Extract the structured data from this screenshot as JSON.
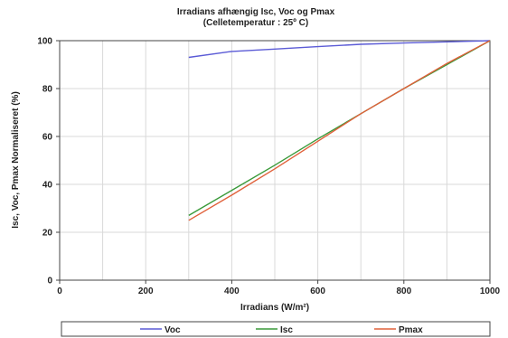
{
  "chart_data": {
    "type": "line",
    "title": "Irradians afhængig Isc, Voc og Pmax",
    "subtitle": "(Celletemperatur : 25º C)",
    "xlabel": "Irradians (W/m²)",
    "ylabel": "Isc, Voc, Pmax Normaliseret (%)",
    "xlim": [
      0,
      1000
    ],
    "ylim": [
      0,
      100
    ],
    "xticks": [
      0,
      200,
      400,
      600,
      800,
      1000
    ],
    "yticks": [
      0,
      20,
      40,
      60,
      80,
      100
    ],
    "grid": true,
    "legend_position": "bottom",
    "series": [
      {
        "name": "Voc",
        "color": "#5b5bd6",
        "x": [
          300,
          400,
          500,
          600,
          700,
          800,
          900,
          1000
        ],
        "y": [
          93,
          95.5,
          96.5,
          97.5,
          98.5,
          99,
          99.5,
          100
        ]
      },
      {
        "name": "Isc",
        "color": "#3a9a3a",
        "x": [
          300,
          400,
          500,
          600,
          700,
          800,
          900,
          1000
        ],
        "y": [
          27,
          37.5,
          48,
          59,
          69.5,
          80,
          90,
          100
        ]
      },
      {
        "name": "Pmax",
        "color": "#e0603a",
        "x": [
          300,
          400,
          500,
          600,
          700,
          800,
          900,
          1000
        ],
        "y": [
          25,
          35.5,
          46.5,
          58,
          69.5,
          80,
          90.5,
          100
        ]
      }
    ]
  }
}
